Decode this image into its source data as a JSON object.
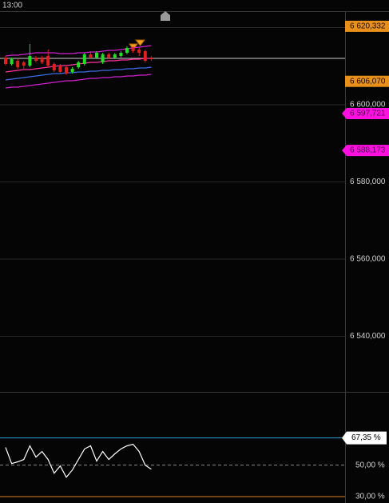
{
  "chart_data": [
    {
      "type": "candlestick",
      "time_label": "13:00",
      "categories": [
        null,
        null,
        null,
        null,
        null,
        null,
        null,
        null,
        null,
        null,
        null,
        null,
        null,
        null,
        null,
        null,
        null,
        null,
        null,
        null,
        null,
        null,
        null,
        null,
        null
      ],
      "open": [
        6612228,
        6610570,
        6611399,
        6610984,
        6610155,
        6612228,
        6612228,
        6612642,
        6610570,
        6610155,
        6609741,
        6608497,
        6609741,
        6610570,
        6613057,
        6612228,
        6610984,
        6613057,
        6612228,
        6612642,
        6613471,
        6614715,
        6614300,
        6613886,
        6612228
      ],
      "high": [
        6612642,
        6612228,
        6611813,
        6611399,
        6615751,
        6612642,
        6612642,
        6614300,
        6610984,
        6610570,
        6610155,
        6609741,
        6611399,
        6613471,
        6613886,
        6613886,
        6613471,
        6613471,
        6613471,
        6613886,
        6615129,
        6615129,
        6614715,
        6614300,
        6612642
      ],
      "low": [
        6610155,
        6610155,
        6609326,
        6609326,
        6609741,
        6610984,
        6610570,
        6609741,
        6608497,
        6608083,
        6607668,
        6608083,
        6609326,
        6610155,
        6611813,
        6611813,
        6610570,
        6611813,
        6611813,
        6612228,
        6613057,
        6613471,
        6612642,
        6610984,
        6611399
      ],
      "close": [
        6610570,
        6611813,
        6609741,
        6610155,
        6612642,
        6611399,
        6610984,
        6610155,
        6608912,
        6608497,
        6608083,
        6609326,
        6610984,
        6613057,
        6612228,
        6613471,
        6613057,
        6612228,
        6613057,
        6613471,
        6614715,
        6613886,
        6613471,
        6611399,
        6611813
      ],
      "up_color": "#22e022",
      "down_color": "#e02020",
      "series": [
        {
          "color": "#d020d0",
          "values": [
            6612642,
            6612850,
            6612850,
            6613057,
            6613264,
            6613471,
            6613471,
            6613471,
            6613471,
            6613264,
            6613264,
            6613264,
            6613471,
            6613471,
            6613679,
            6613679,
            6613886,
            6614093,
            6614093,
            6614300,
            6614508,
            6614715,
            6614922,
            6615129,
            6615337
          ]
        },
        {
          "color": "#ff30a0",
          "values": [
            6608497,
            6608705,
            6608912,
            6609119,
            6609119,
            6609326,
            6609534,
            6609741,
            6609948,
            6610155,
            6610155,
            6610363,
            6610570,
            6610777,
            6610984,
            6610984,
            6611192,
            6611399,
            6611399,
            6611606,
            6611606,
            6611813,
            6611813,
            6612021,
            6612021
          ]
        },
        {
          "color": "#3a6ee8",
          "values": [
            6606425,
            6606632,
            6606839,
            6607047,
            6607254,
            6607461,
            6607668,
            6607876,
            6608083,
            6608083,
            6608290,
            6608290,
            6608497,
            6608497,
            6608705,
            6608705,
            6608912,
            6608912,
            6609119,
            6609119,
            6609326,
            6609326,
            6609534,
            6609534,
            6609741
          ]
        },
        {
          "color": "#d020d0",
          "values": [
            6604352,
            6604560,
            6604560,
            6604767,
            6604974,
            6605181,
            6605389,
            6605596,
            6605803,
            6606010,
            6606218,
            6606218,
            6606425,
            6606632,
            6606839,
            6606839,
            6607047,
            6607047,
            6607254,
            6607254,
            6607461,
            6607461,
            6607668,
            6607668,
            6607876
          ]
        }
      ],
      "last_price": 6612020,
      "ylim": [
        6525600,
        6624250
      ],
      "yticks": [
        {
          "value": 6620000,
          "label": null
        },
        {
          "value": 6600000,
          "label": "6 600,000"
        },
        {
          "value": 6580000,
          "label": "6 580,000"
        },
        {
          "value": 6560000,
          "label": "6 560,000"
        },
        {
          "value": 6540000,
          "label": "6 540,000"
        }
      ],
      "price_tags": [
        {
          "value": 6620332,
          "label": "6 620,332",
          "color": "#e8901a",
          "shape": "box"
        },
        {
          "value": 6606070,
          "label": "6 606,070",
          "color": "#e8901a",
          "shape": "box"
        },
        {
          "value": 6597721,
          "label": "6 597,721",
          "color": "#ff10e0",
          "shape": "arrow"
        },
        {
          "value": 6588173,
          "label": "6 588,173",
          "color": "#ff10e0",
          "shape": "arrow"
        }
      ]
    },
    {
      "type": "line",
      "categories": [
        null,
        null,
        null,
        null,
        null,
        null,
        null,
        null,
        null,
        null,
        null,
        null,
        null,
        null,
        null,
        null,
        null,
        null,
        null,
        null,
        null,
        null,
        null,
        null,
        null
      ],
      "series": [
        {
          "color": "#ffffff",
          "values": [
            61.3,
            51.0,
            52.1,
            53.6,
            62.3,
            55.1,
            58.7,
            53.6,
            44.9,
            49.5,
            42.3,
            46.9,
            53.6,
            60.3,
            62.3,
            52.6,
            58.7,
            53.6,
            57.2,
            60.3,
            62.3,
            63.3,
            58.7,
            50.0,
            47.4
          ]
        }
      ],
      "ylim": [
        25.9,
        96.15
      ],
      "levels": [
        {
          "value": 67.35,
          "label": "67,35 %",
          "color": "#29a3d6",
          "tag": true
        },
        {
          "value": 50,
          "label": "50,00 %",
          "color": "#888888",
          "dashed": true
        },
        {
          "value": 30,
          "label": "30,00 %",
          "color": "#e08020"
        }
      ]
    }
  ]
}
